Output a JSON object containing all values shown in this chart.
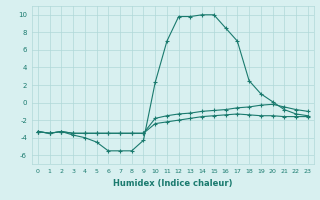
{
  "xlabel": "Humidex (Indice chaleur)",
  "x": [
    0,
    1,
    2,
    3,
    4,
    5,
    6,
    7,
    8,
    9,
    10,
    11,
    12,
    13,
    14,
    15,
    16,
    17,
    18,
    19,
    20,
    21,
    22,
    23
  ],
  "line1": [
    -3.3,
    -3.5,
    -3.3,
    -3.5,
    -3.5,
    -3.5,
    -3.5,
    -3.5,
    -3.5,
    -3.5,
    -2.4,
    -2.2,
    -2.0,
    -1.8,
    -1.6,
    -1.5,
    -1.4,
    -1.3,
    -1.4,
    -1.5,
    -1.5,
    -1.6,
    -1.6,
    -1.6
  ],
  "line2": [
    -3.3,
    -3.5,
    -3.3,
    -3.5,
    -3.5,
    -3.5,
    -3.5,
    -3.5,
    -3.5,
    -3.5,
    -1.8,
    -1.5,
    -1.3,
    -1.2,
    -1.0,
    -0.9,
    -0.8,
    -0.6,
    -0.5,
    -0.3,
    -0.2,
    -0.5,
    -0.8,
    -1.0
  ],
  "line3": [
    -3.3,
    -3.5,
    -3.3,
    -3.7,
    -4.0,
    -4.5,
    -5.5,
    -5.5,
    -5.5,
    -4.3,
    2.3,
    7.0,
    9.8,
    9.8,
    10.0,
    10.0,
    8.5,
    7.0,
    2.5,
    1.0,
    0.1,
    -0.8,
    -1.3,
    -1.5
  ],
  "ylim": [
    -7,
    11
  ],
  "xlim": [
    -0.5,
    23.5
  ],
  "yticks": [
    -6,
    -4,
    -2,
    0,
    2,
    4,
    6,
    8,
    10
  ],
  "xticks": [
    0,
    1,
    2,
    3,
    4,
    5,
    6,
    7,
    8,
    9,
    10,
    11,
    12,
    13,
    14,
    15,
    16,
    17,
    18,
    19,
    20,
    21,
    22,
    23
  ],
  "line_color": "#1a7a6e",
  "bg_color": "#d8f0f0",
  "grid_color": "#b0d8d8"
}
